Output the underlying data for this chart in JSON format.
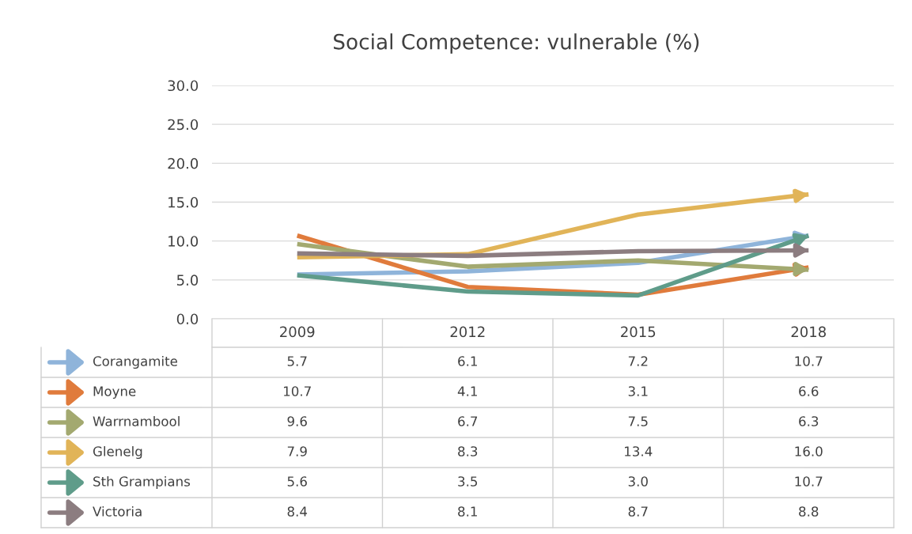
{
  "chart_data": {
    "type": "line",
    "title": "Social Competence: vulnerable (%)",
    "categories": [
      "2009",
      "2012",
      "2015",
      "2018"
    ],
    "series": [
      {
        "name": "Corangamite",
        "color": "#8fb4da",
        "values": [
          5.7,
          6.1,
          7.2,
          10.7
        ],
        "value_labels": [
          "5.7",
          "6.1",
          "7.2",
          "10.7"
        ]
      },
      {
        "name": "Moyne",
        "color": "#e07b3c",
        "values": [
          10.7,
          4.1,
          3.1,
          6.6
        ],
        "value_labels": [
          "10.7",
          "4.1",
          "3.1",
          "6.6"
        ]
      },
      {
        "name": "Warrnambool",
        "color": "#a3a970",
        "values": [
          9.6,
          6.7,
          7.5,
          6.3
        ],
        "value_labels": [
          "9.6",
          "6.7",
          "7.5",
          "6.3"
        ]
      },
      {
        "name": "Glenelg",
        "color": "#e1b458",
        "values": [
          7.9,
          8.3,
          13.4,
          16.0
        ],
        "value_labels": [
          "7.9",
          "8.3",
          "13.4",
          "16.0"
        ]
      },
      {
        "name": "Sth Grampians",
        "color": "#5f9c8a",
        "values": [
          5.6,
          3.5,
          3.0,
          10.7
        ],
        "value_labels": [
          "5.6",
          "3.5",
          "3.0",
          "10.7"
        ]
      },
      {
        "name": "Victoria",
        "color": "#8c7d80",
        "values": [
          8.4,
          8.1,
          8.7,
          8.8
        ],
        "value_labels": [
          "8.4",
          "8.1",
          "8.7",
          "8.8"
        ]
      }
    ],
    "ylim": [
      0,
      30
    ],
    "yticks": [
      {
        "value": 0,
        "label": "0.0"
      },
      {
        "value": 5,
        "label": "5.0"
      },
      {
        "value": 10,
        "label": "10.0"
      },
      {
        "value": 15,
        "label": "15.0"
      },
      {
        "value": 20,
        "label": "20.0"
      },
      {
        "value": 25,
        "label": "25.0"
      },
      {
        "value": 30,
        "label": "30.0"
      }
    ],
    "grid": "y",
    "marker": "none",
    "line_style": "solid",
    "legend": "bottom left"
  }
}
